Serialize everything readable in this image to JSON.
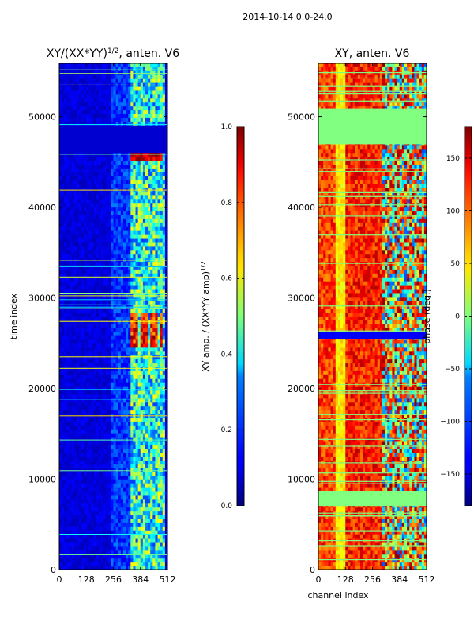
{
  "chart_data": [
    {
      "type": "heatmap",
      "suptitle": "2014-10-14 0.0-24.0",
      "title_main": "XY/(XX*YY)",
      "title_sup": "1/2",
      "title_rest": ", anten. V6",
      "xlabel": "",
      "ylabel": "time index",
      "x_ticks": [
        "0",
        "128",
        "256",
        "384",
        "512"
      ],
      "xlim": [
        0,
        512
      ],
      "y_ticks": [
        "0",
        "10000",
        "20000",
        "30000",
        "40000",
        "50000"
      ],
      "ylim": [
        0,
        55900
      ],
      "colorbar": {
        "label_main": "XY amp. / (XX*YY amp)",
        "label_sup": "1/2",
        "range": [
          0.0,
          1.0
        ],
        "ticks": [
          "0.0",
          "0.2",
          "0.4",
          "0.6",
          "0.8",
          "1.0"
        ],
        "colormap": "jet"
      }
    },
    {
      "type": "heatmap",
      "title": "XY, anten. V6",
      "xlabel": "channel index",
      "ylabel": "",
      "x_ticks": [
        "0",
        "128",
        "256",
        "384",
        "512"
      ],
      "xlim": [
        0,
        512
      ],
      "y_ticks": [
        "0",
        "10000",
        "20000",
        "30000",
        "40000",
        "50000"
      ],
      "ylim": [
        0,
        55900
      ],
      "colorbar": {
        "label": "phase (deg.)",
        "range": [
          -180,
          180
        ],
        "ticks": [
          "−150",
          "−100",
          "−50",
          "0",
          "50",
          "100",
          "150"
        ],
        "colormap": "jet"
      }
    }
  ]
}
